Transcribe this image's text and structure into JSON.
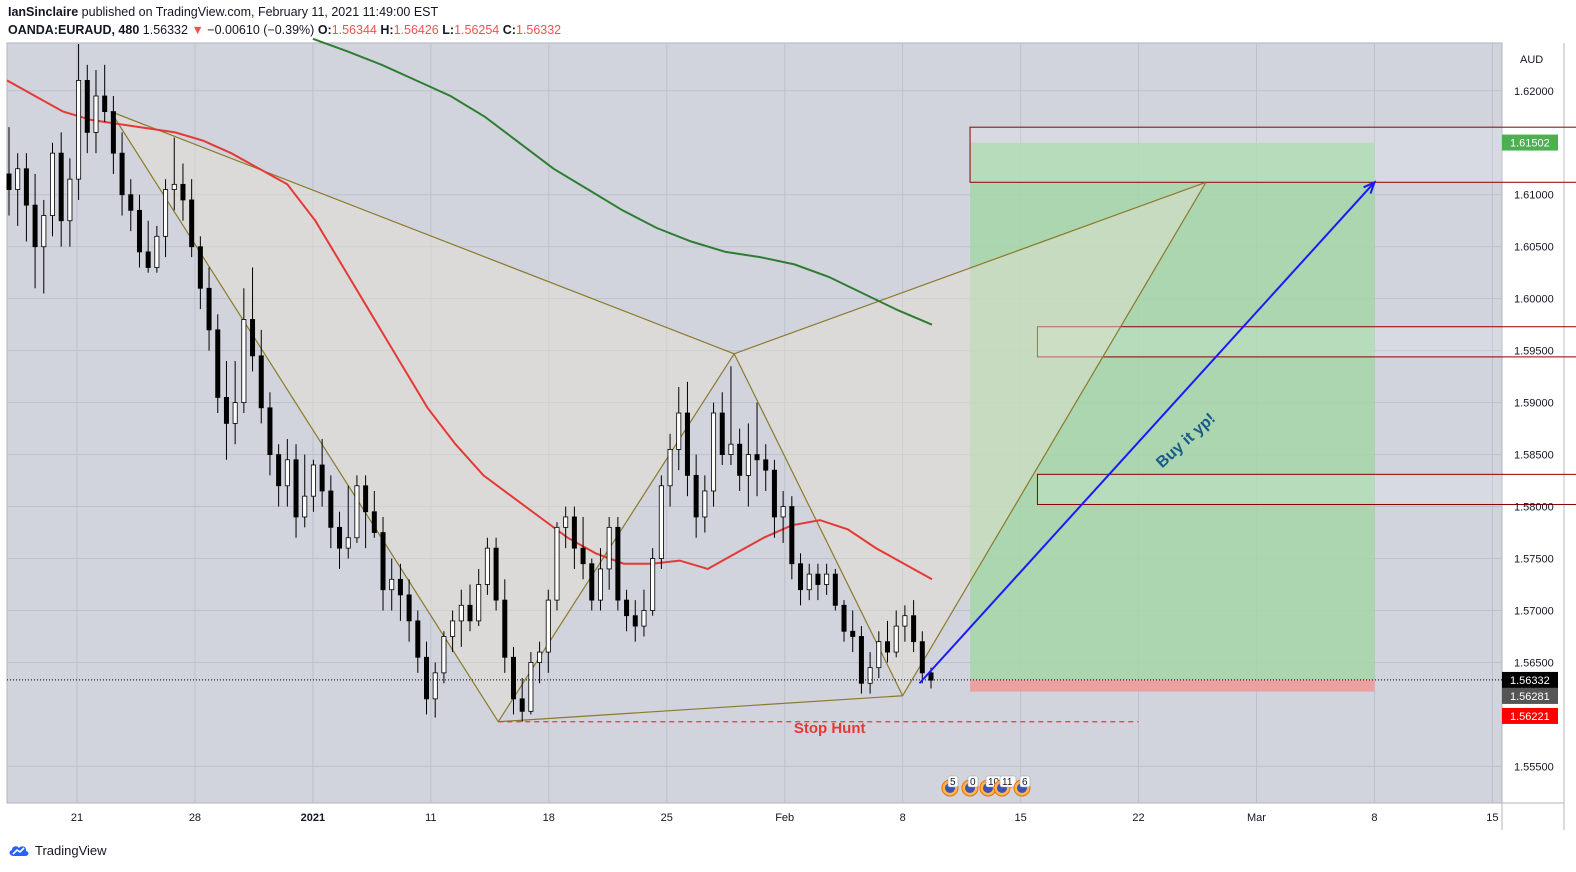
{
  "header": {
    "author": "IanSinclaire",
    "published_text": "published on TradingView.com, February 11, 2021 11:49:00 EST",
    "symbol": "OANDA:EURAUD, 480",
    "last": "1.56332",
    "change_arrow": "▼",
    "change": "−0.00610 (−0.39%)",
    "o_label": "O:",
    "o_value": "1.56344",
    "h_label": "H:",
    "h_value": "1.56426",
    "l_label": "L:",
    "l_value": "1.56254",
    "c_label": "C:",
    "c_value": "1.56332"
  },
  "footer": {
    "brand": "TradingView",
    "logo_icon": "tradingview-logo-icon"
  },
  "colors": {
    "background": "#d1d4dc",
    "grid": "#bdc1cb",
    "up_candle": "#ffffff",
    "down_candle": "#000000",
    "ema_slow": "#2e7d32",
    "ema_fast": "#e53935",
    "pattern": "#8b7a2b",
    "arrow": "#1a1aff",
    "target_zone": "#a5d6a7",
    "stop_zone": "#ef9a9a",
    "zone_border": "#8b0000",
    "stop_hunt": "#e53935"
  },
  "chart_data": {
    "type": "candlestick",
    "currency": "AUD",
    "x_ticks": [
      "21",
      "28",
      "2021",
      "11",
      "18",
      "25",
      "Feb",
      "8",
      "15",
      "22",
      "Mar",
      "8",
      "15"
    ],
    "y_ticks": [
      "1.62000",
      "1.61000",
      "1.60500",
      "1.60000",
      "1.59500",
      "1.59000",
      "1.58500",
      "1.58000",
      "1.57500",
      "1.57000",
      "1.56500",
      "1.55500"
    ],
    "ylim": [
      1.551,
      1.6245
    ],
    "price_labels": [
      {
        "value": 1.61502,
        "text": "1.61502",
        "color": "#4caf50",
        "text_color": "#ffffff"
      },
      {
        "value": 1.56332,
        "text": "1.56332",
        "color": "#000000",
        "text_color": "#ffffff"
      },
      {
        "value": 1.56281,
        "text": "1.56281",
        "color": "#555555",
        "text_color": "#ffffff"
      },
      {
        "value": 1.56221,
        "text": "1.56221",
        "color": "#ff0000",
        "text_color": "#ffffff"
      }
    ],
    "candles": [
      {
        "o": 1.612,
        "h": 1.6165,
        "l": 1.608,
        "c": 1.6105
      },
      {
        "o": 1.6105,
        "h": 1.614,
        "l": 1.607,
        "c": 1.6125
      },
      {
        "o": 1.6125,
        "h": 1.614,
        "l": 1.6055,
        "c": 1.609
      },
      {
        "o": 1.609,
        "h": 1.612,
        "l": 1.601,
        "c": 1.605
      },
      {
        "o": 1.605,
        "h": 1.6095,
        "l": 1.6005,
        "c": 1.608
      },
      {
        "o": 1.608,
        "h": 1.615,
        "l": 1.606,
        "c": 1.614
      },
      {
        "o": 1.614,
        "h": 1.616,
        "l": 1.605,
        "c": 1.6075
      },
      {
        "o": 1.6075,
        "h": 1.6135,
        "l": 1.605,
        "c": 1.6115
      },
      {
        "o": 1.6115,
        "h": 1.6245,
        "l": 1.6095,
        "c": 1.621
      },
      {
        "o": 1.621,
        "h": 1.6225,
        "l": 1.614,
        "c": 1.616
      },
      {
        "o": 1.616,
        "h": 1.622,
        "l": 1.614,
        "c": 1.6195
      },
      {
        "o": 1.6195,
        "h": 1.6225,
        "l": 1.617,
        "c": 1.618
      },
      {
        "o": 1.618,
        "h": 1.6195,
        "l": 1.612,
        "c": 1.614
      },
      {
        "o": 1.614,
        "h": 1.616,
        "l": 1.608,
        "c": 1.61
      },
      {
        "o": 1.61,
        "h": 1.6115,
        "l": 1.6065,
        "c": 1.6085
      },
      {
        "o": 1.6085,
        "h": 1.61,
        "l": 1.603,
        "c": 1.6045
      },
      {
        "o": 1.6045,
        "h": 1.6075,
        "l": 1.6025,
        "c": 1.603
      },
      {
        "o": 1.603,
        "h": 1.607,
        "l": 1.6025,
        "c": 1.606
      },
      {
        "o": 1.606,
        "h": 1.6115,
        "l": 1.604,
        "c": 1.6105
      },
      {
        "o": 1.6105,
        "h": 1.6155,
        "l": 1.6085,
        "c": 1.611
      },
      {
        "o": 1.611,
        "h": 1.613,
        "l": 1.6075,
        "c": 1.6095
      },
      {
        "o": 1.6095,
        "h": 1.6115,
        "l": 1.604,
        "c": 1.605
      },
      {
        "o": 1.605,
        "h": 1.606,
        "l": 1.599,
        "c": 1.601
      },
      {
        "o": 1.601,
        "h": 1.603,
        "l": 1.595,
        "c": 1.597
      },
      {
        "o": 1.597,
        "h": 1.5985,
        "l": 1.589,
        "c": 1.5905
      },
      {
        "o": 1.5905,
        "h": 1.594,
        "l": 1.5845,
        "c": 1.588
      },
      {
        "o": 1.588,
        "h": 1.594,
        "l": 1.586,
        "c": 1.59
      },
      {
        "o": 1.59,
        "h": 1.601,
        "l": 1.589,
        "c": 1.598
      },
      {
        "o": 1.598,
        "h": 1.603,
        "l": 1.593,
        "c": 1.5945
      },
      {
        "o": 1.5945,
        "h": 1.597,
        "l": 1.588,
        "c": 1.5895
      },
      {
        "o": 1.5895,
        "h": 1.591,
        "l": 1.583,
        "c": 1.585
      },
      {
        "o": 1.585,
        "h": 1.586,
        "l": 1.58,
        "c": 1.582
      },
      {
        "o": 1.582,
        "h": 1.5865,
        "l": 1.58,
        "c": 1.5845
      },
      {
        "o": 1.5845,
        "h": 1.586,
        "l": 1.577,
        "c": 1.579
      },
      {
        "o": 1.579,
        "h": 1.585,
        "l": 1.578,
        "c": 1.581
      },
      {
        "o": 1.581,
        "h": 1.5845,
        "l": 1.5795,
        "c": 1.584
      },
      {
        "o": 1.584,
        "h": 1.5865,
        "l": 1.58,
        "c": 1.5815
      },
      {
        "o": 1.5815,
        "h": 1.583,
        "l": 1.576,
        "c": 1.578
      },
      {
        "o": 1.578,
        "h": 1.5795,
        "l": 1.574,
        "c": 1.576
      },
      {
        "o": 1.576,
        "h": 1.582,
        "l": 1.575,
        "c": 1.577
      },
      {
        "o": 1.577,
        "h": 1.583,
        "l": 1.5765,
        "c": 1.582
      },
      {
        "o": 1.582,
        "h": 1.583,
        "l": 1.576,
        "c": 1.5795
      },
      {
        "o": 1.5795,
        "h": 1.5815,
        "l": 1.577,
        "c": 1.5775
      },
      {
        "o": 1.5775,
        "h": 1.579,
        "l": 1.57,
        "c": 1.572
      },
      {
        "o": 1.572,
        "h": 1.575,
        "l": 1.57,
        "c": 1.573
      },
      {
        "o": 1.573,
        "h": 1.5745,
        "l": 1.569,
        "c": 1.5715
      },
      {
        "o": 1.5715,
        "h": 1.573,
        "l": 1.567,
        "c": 1.569
      },
      {
        "o": 1.569,
        "h": 1.57,
        "l": 1.564,
        "c": 1.5655
      },
      {
        "o": 1.5655,
        "h": 1.567,
        "l": 1.56,
        "c": 1.5615
      },
      {
        "o": 1.5615,
        "h": 1.565,
        "l": 1.5597,
        "c": 1.564
      },
      {
        "o": 1.564,
        "h": 1.568,
        "l": 1.563,
        "c": 1.5675
      },
      {
        "o": 1.5675,
        "h": 1.57,
        "l": 1.566,
        "c": 1.569
      },
      {
        "o": 1.569,
        "h": 1.572,
        "l": 1.5665,
        "c": 1.5705
      },
      {
        "o": 1.5705,
        "h": 1.5725,
        "l": 1.568,
        "c": 1.569
      },
      {
        "o": 1.569,
        "h": 1.574,
        "l": 1.5685,
        "c": 1.5725
      },
      {
        "o": 1.5725,
        "h": 1.577,
        "l": 1.5715,
        "c": 1.576
      },
      {
        "o": 1.576,
        "h": 1.577,
        "l": 1.57,
        "c": 1.571
      },
      {
        "o": 1.571,
        "h": 1.573,
        "l": 1.564,
        "c": 1.5655
      },
      {
        "o": 1.5655,
        "h": 1.5665,
        "l": 1.56,
        "c": 1.5615
      },
      {
        "o": 1.5615,
        "h": 1.5635,
        "l": 1.5593,
        "c": 1.5603
      },
      {
        "o": 1.5603,
        "h": 1.566,
        "l": 1.56,
        "c": 1.565
      },
      {
        "o": 1.565,
        "h": 1.567,
        "l": 1.563,
        "c": 1.566
      },
      {
        "o": 1.566,
        "h": 1.572,
        "l": 1.564,
        "c": 1.571
      },
      {
        "o": 1.571,
        "h": 1.5785,
        "l": 1.57,
        "c": 1.578
      },
      {
        "o": 1.578,
        "h": 1.58,
        "l": 1.576,
        "c": 1.579
      },
      {
        "o": 1.579,
        "h": 1.58,
        "l": 1.574,
        "c": 1.576
      },
      {
        "o": 1.576,
        "h": 1.579,
        "l": 1.573,
        "c": 1.5745
      },
      {
        "o": 1.5745,
        "h": 1.575,
        "l": 1.57,
        "c": 1.571
      },
      {
        "o": 1.571,
        "h": 1.576,
        "l": 1.57,
        "c": 1.574
      },
      {
        "o": 1.574,
        "h": 1.579,
        "l": 1.572,
        "c": 1.578
      },
      {
        "o": 1.578,
        "h": 1.579,
        "l": 1.57,
        "c": 1.571
      },
      {
        "o": 1.571,
        "h": 1.572,
        "l": 1.568,
        "c": 1.5695
      },
      {
        "o": 1.5695,
        "h": 1.571,
        "l": 1.567,
        "c": 1.5685
      },
      {
        "o": 1.5685,
        "h": 1.572,
        "l": 1.5675,
        "c": 1.57
      },
      {
        "o": 1.57,
        "h": 1.576,
        "l": 1.5695,
        "c": 1.575
      },
      {
        "o": 1.575,
        "h": 1.583,
        "l": 1.574,
        "c": 1.582
      },
      {
        "o": 1.582,
        "h": 1.587,
        "l": 1.58,
        "c": 1.5855
      },
      {
        "o": 1.5855,
        "h": 1.5915,
        "l": 1.5835,
        "c": 1.589
      },
      {
        "o": 1.589,
        "h": 1.592,
        "l": 1.581,
        "c": 1.583
      },
      {
        "o": 1.583,
        "h": 1.585,
        "l": 1.577,
        "c": 1.579
      },
      {
        "o": 1.579,
        "h": 1.583,
        "l": 1.5775,
        "c": 1.5815
      },
      {
        "o": 1.5815,
        "h": 1.59,
        "l": 1.58,
        "c": 1.589
      },
      {
        "o": 1.589,
        "h": 1.591,
        "l": 1.584,
        "c": 1.585
      },
      {
        "o": 1.585,
        "h": 1.5935,
        "l": 1.584,
        "c": 1.586
      },
      {
        "o": 1.586,
        "h": 1.5875,
        "l": 1.5815,
        "c": 1.583
      },
      {
        "o": 1.583,
        "h": 1.588,
        "l": 1.58,
        "c": 1.585
      },
      {
        "o": 1.585,
        "h": 1.59,
        "l": 1.581,
        "c": 1.5845
      },
      {
        "o": 1.5845,
        "h": 1.586,
        "l": 1.5815,
        "c": 1.5835
      },
      {
        "o": 1.5835,
        "h": 1.5845,
        "l": 1.577,
        "c": 1.579
      },
      {
        "o": 1.579,
        "h": 1.5815,
        "l": 1.5765,
        "c": 1.58
      },
      {
        "o": 1.58,
        "h": 1.581,
        "l": 1.573,
        "c": 1.5745
      },
      {
        "o": 1.5745,
        "h": 1.5755,
        "l": 1.5705,
        "c": 1.572
      },
      {
        "o": 1.572,
        "h": 1.5745,
        "l": 1.571,
        "c": 1.5735
      },
      {
        "o": 1.5735,
        "h": 1.5745,
        "l": 1.571,
        "c": 1.5725
      },
      {
        "o": 1.5725,
        "h": 1.5745,
        "l": 1.5715,
        "c": 1.5735
      },
      {
        "o": 1.5735,
        "h": 1.574,
        "l": 1.57,
        "c": 1.5705
      },
      {
        "o": 1.5705,
        "h": 1.571,
        "l": 1.567,
        "c": 1.568
      },
      {
        "o": 1.568,
        "h": 1.57,
        "l": 1.566,
        "c": 1.5675
      },
      {
        "o": 1.5675,
        "h": 1.5685,
        "l": 1.562,
        "c": 1.563
      },
      {
        "o": 1.563,
        "h": 1.566,
        "l": 1.562,
        "c": 1.5645
      },
      {
        "o": 1.5645,
        "h": 1.568,
        "l": 1.5635,
        "c": 1.567
      },
      {
        "o": 1.567,
        "h": 1.569,
        "l": 1.565,
        "c": 1.566
      },
      {
        "o": 1.566,
        "h": 1.57,
        "l": 1.5655,
        "c": 1.5685
      },
      {
        "o": 1.5685,
        "h": 1.5705,
        "l": 1.567,
        "c": 1.5695
      },
      {
        "o": 1.5695,
        "h": 1.571,
        "l": 1.566,
        "c": 1.567
      },
      {
        "o": 1.567,
        "h": 1.568,
        "l": 1.563,
        "c": 1.564
      },
      {
        "o": 1.564,
        "h": 1.5645,
        "l": 1.5625,
        "c": 1.5633
      }
    ],
    "ema_fast": [
      1.621,
      1.6195,
      1.618,
      1.6172,
      1.6168,
      1.6164,
      1.616,
      1.6152,
      1.614,
      1.6125,
      1.611,
      1.6075,
      1.603,
      1.5985,
      1.594,
      1.5895,
      1.586,
      1.583,
      1.581,
      1.579,
      1.577,
      1.5755,
      1.5745,
      1.5745,
      1.5748,
      1.574,
      1.5755,
      1.577,
      1.5782,
      1.5787,
      1.5778,
      1.576,
      1.5745,
      1.573
    ],
    "ema_slow": [
      1.625,
      1.6238,
      1.6225,
      1.621,
      1.6195,
      1.6175,
      1.615,
      1.6125,
      1.6105,
      1.6085,
      1.6068,
      1.6055,
      1.6045,
      1.604,
      1.6033,
      1.6021,
      1.6005,
      1.5989,
      1.5975
    ],
    "ema_slow_start_date": "2021-01-04",
    "moving_averages": [
      {
        "name": "ema_slow",
        "color": "#2e7d32"
      },
      {
        "name": "ema_fast",
        "color": "#e53935"
      }
    ],
    "harmonic_points": [
      {
        "time": "2020-12-23",
        "price": 1.618
      },
      {
        "time": "2021-01-15",
        "price": 1.5593
      },
      {
        "time": "2021-01-29",
        "price": 1.5947
      },
      {
        "time": "2021-02-08",
        "price": 1.5618
      },
      {
        "time": "2021-02-26",
        "price": 1.6112
      }
    ],
    "target_zone": {
      "from_time": "2021-02-12",
      "to_time": "2021-03-08",
      "top": 1.615,
      "bottom": 1.5633
    },
    "stop_zone": {
      "from_time": "2021-02-12",
      "to_time": "2021-03-08",
      "top": 1.5633,
      "bottom": 1.5622
    },
    "resistance_boxes": [
      {
        "from_time": "2021-02-12",
        "to_time": "2021-03-20",
        "top": 1.6165,
        "bottom": 1.6112
      },
      {
        "from_time": "2021-02-16",
        "to_time": "2021-03-22",
        "top": 1.5973,
        "bottom": 1.5944
      },
      {
        "from_time": "2021-02-16",
        "to_time": "2021-03-22",
        "top": 1.5831,
        "bottom": 1.5802
      }
    ],
    "arrow": {
      "from": {
        "time": "2021-02-09",
        "price": 1.563
      },
      "to": {
        "time": "2021-03-08",
        "price": 1.6112
      }
    },
    "stop_hunt_line": {
      "from_time": "2021-01-15",
      "to_time": "2021-02-22",
      "price": 1.5593
    },
    "annotations": [
      {
        "text": "Buy it yp!",
        "time": "2021-02-25",
        "price": 1.586,
        "angle": -42,
        "color": "#1a5a8a"
      },
      {
        "text": "Stop Hunt",
        "time": "2021-02-01",
        "price": 1.5582,
        "color": "#e53935"
      }
    ],
    "event_badges": [
      "5",
      "0",
      "10",
      "11",
      "6"
    ],
    "grid": true
  }
}
